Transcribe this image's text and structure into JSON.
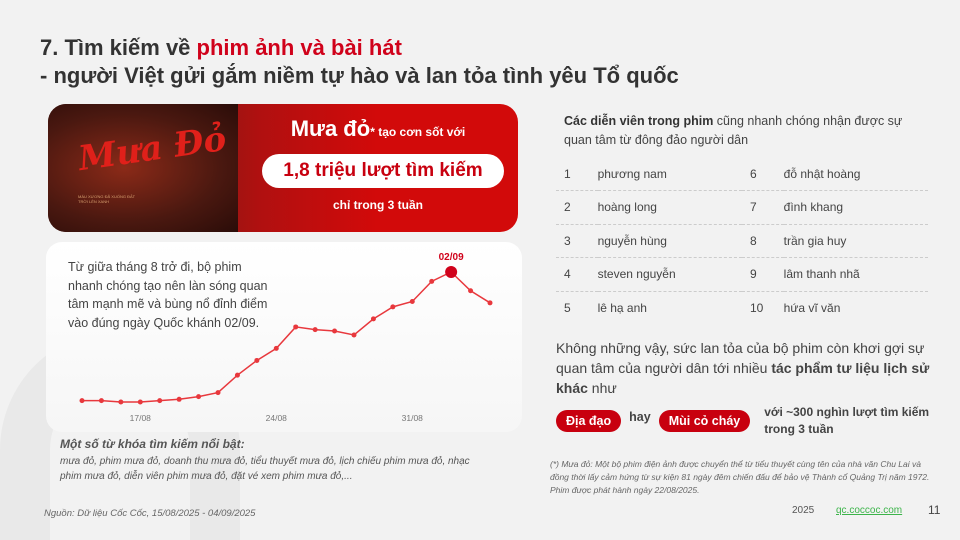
{
  "title": {
    "number": "7. Tìm kiếm về ",
    "highlight": "phim ảnh và bài hát",
    "line2": "- người Việt gửi gắm niềm tự hào và lan tỏa tình yêu Tổ quốc"
  },
  "banner": {
    "poster_logo": "Mưa Đỏ",
    "poster_tagline": "MÁU XƯƠNG ĐÃ XUỐNG ĐẤT TRỜI LÊN XANH",
    "movie": "Mưa đỏ",
    "asterisk": "*",
    "after": " tạo cơn sốt với",
    "highlight": "1,8 triệu lượt tìm kiếm",
    "sub": "chỉ trong 3 tuần"
  },
  "card": {
    "text": "Từ giữa tháng 8 trở đi, bộ phim nhanh chóng tạo nên làn sóng quan tâm mạnh mẽ và bùng nổ đỉnh điểm vào đúng ngày Quốc khánh 02/09."
  },
  "chart_data": {
    "type": "line",
    "x": [
      "14/08",
      "15/08",
      "16/08",
      "17/08",
      "18/08",
      "19/08",
      "20/08",
      "21/08",
      "22/08",
      "23/08",
      "24/08",
      "25/08",
      "26/08",
      "27/08",
      "28/08",
      "29/08",
      "30/08",
      "31/08",
      "01/09",
      "02/09",
      "03/09",
      "04/09"
    ],
    "values": [
      4,
      4,
      3,
      3,
      4,
      5,
      7,
      10,
      23,
      34,
      43,
      59,
      57,
      56,
      53,
      65,
      74,
      78,
      93,
      100,
      86,
      77
    ],
    "tick_labels": [
      "17/08",
      "24/08",
      "31/08"
    ],
    "peak_label": "02/09",
    "color": "#e8383d",
    "peak_color": "#d0021b",
    "grid": false,
    "axes_visible": false
  },
  "keywords": {
    "title": "Một số từ khóa tìm kiếm nổi bật:",
    "text": "mưa đỏ, phim mưa đỏ, doanh thu mưa đỏ, tiểu thuyết mưa đỏ, lịch chiếu phim mưa đỏ, nhạc phim mưa đỏ, diễn viên phim mưa đỏ, đặt vé xem phim mưa đỏ,..."
  },
  "source": "Nguồn: Dữ liệu Cốc Cốc, 15/08/2025 - 04/09/2025",
  "actors": {
    "intro_bold": "Các diễn viên trong phim",
    "intro_rest": " cũng nhanh chóng nhận được sự quan tâm từ đông đảo người dân",
    "rows": [
      {
        "n1": "1",
        "a1": "phương nam",
        "n2": "6",
        "a2": "đỗ nhật hoàng"
      },
      {
        "n1": "2",
        "a1": "hoàng long",
        "n2": "7",
        "a2": "đình khang"
      },
      {
        "n1": "3",
        "a1": "nguyễn hùng",
        "n2": "8",
        "a2": "trần gia huy"
      },
      {
        "n1": "4",
        "a1": "steven nguyễn",
        "n2": "9",
        "a2": "lâm thanh nhã"
      },
      {
        "n1": "5",
        "a1": "lê hạ anh",
        "n2": "10",
        "a2": "hứa vĩ văn"
      }
    ]
  },
  "other": {
    "p1": "Không những vậy, sức lan tỏa của bộ phim còn khơi gợi sự quan tâm của người dân tới nhiều ",
    "bold": "tác phẩm tư liệu lịch sử khác",
    "p2": " như",
    "tag1": "Địa đạo",
    "hay": "hay",
    "tag2": "Mùi cỏ cháy",
    "note": "với ~300 nghìn lượt tìm kiếm trong 3 tuần"
  },
  "footnote": "(*) Mưa đỏ: Một bộ phim điện ảnh được chuyển thể từ tiểu thuyết cùng tên của nhà văn Chu Lai và đồng thời lấy cảm hứng từ sự kiện 81 ngày đêm chiến đấu để bảo vệ Thành cổ Quảng Trị năm 1972. Phim được phát hành ngày 22/08/2025.",
  "footer": {
    "year": "2025",
    "link": "qc.coccoc.com",
    "page": "11"
  }
}
